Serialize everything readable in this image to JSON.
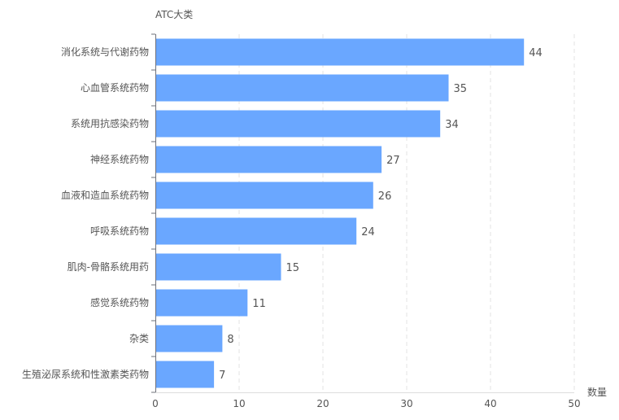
{
  "chart_data": {
    "type": "bar",
    "orientation": "horizontal",
    "ylabel": "ATC大类",
    "xlabel": "数量",
    "xlim": [
      0,
      50
    ],
    "xticks": [
      0,
      10,
      20,
      30,
      40,
      50
    ],
    "grid": "vertical dashed",
    "bar_color": "#6aa7ff",
    "categories": [
      "消化系统与代谢药物",
      "心血管系统药物",
      "系统用抗感染药物",
      "神经系统药物",
      "血液和造血系统药物",
      "呼吸系统药物",
      "肌肉-骨骼系统用药",
      "感觉系统药物",
      "杂类",
      "生殖泌尿系统和性激素类药物"
    ],
    "values": [
      44,
      35,
      34,
      27,
      26,
      24,
      15,
      11,
      8,
      7
    ]
  }
}
